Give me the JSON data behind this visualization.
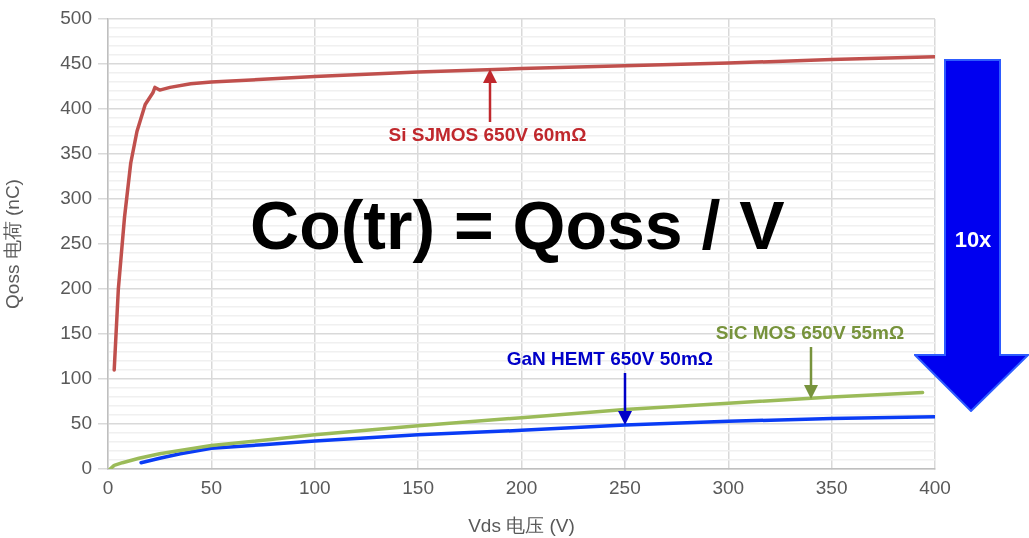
{
  "chart_data": {
    "type": "line",
    "xlabel": "Vds 电压 (V)",
    "ylabel": "Qoss 电荷 (nC)",
    "xlim": [
      0,
      400
    ],
    "xticks": [
      0,
      50,
      100,
      150,
      200,
      250,
      300,
      350,
      400
    ],
    "ylim": [
      0,
      500
    ],
    "yticks": [
      0,
      {
        "value": 10,
        "label": null
      },
      {
        "value": 20,
        "label": null
      },
      {
        "value": 30,
        "label": null
      },
      {
        "value": 40,
        "label": null
      },
      50,
      {
        "value": 60,
        "label": null
      },
      {
        "value": 70,
        "label": null
      },
      {
        "value": 80,
        "label": null
      },
      {
        "value": 90,
        "label": null
      },
      100,
      {
        "value": 110,
        "label": null
      },
      {
        "value": 120,
        "label": null
      },
      {
        "value": 130,
        "label": null
      },
      {
        "value": 140,
        "label": null
      },
      150,
      {
        "value": 160,
        "label": null
      },
      {
        "value": 170,
        "label": null
      },
      {
        "value": 180,
        "label": null
      },
      {
        "value": 190,
        "label": null
      },
      200,
      {
        "value": 210,
        "label": null
      },
      {
        "value": 220,
        "label": null
      },
      {
        "value": 230,
        "label": null
      },
      {
        "value": 240,
        "label": null
      },
      250,
      {
        "value": 260,
        "label": null
      },
      {
        "value": 270,
        "label": null
      },
      {
        "value": 280,
        "label": null
      },
      {
        "value": 290,
        "label": null
      },
      300,
      {
        "value": 310,
        "label": null
      },
      {
        "value": 320,
        "label": null
      },
      {
        "value": 330,
        "label": null
      },
      {
        "value": 340,
        "label": null
      },
      350,
      {
        "value": 360,
        "label": null
      },
      {
        "value": 370,
        "label": null
      },
      {
        "value": 380,
        "label": null
      },
      {
        "value": 390,
        "label": null
      },
      400,
      {
        "value": 410,
        "label": null
      },
      {
        "value": 420,
        "label": null
      },
      {
        "value": 430,
        "label": null
      },
      {
        "value": 440,
        "label": null
      },
      450,
      {
        "value": 460,
        "label": null
      },
      {
        "value": 470,
        "label": null
      },
      {
        "value": 480,
        "label": null
      },
      {
        "value": 490,
        "label": null
      },
      500
    ],
    "grid": true,
    "legend": false,
    "marker": "none",
    "line_style": "solid",
    "series": [
      {
        "color": "#c0504d",
        "x": [
          3,
          5,
          8,
          11,
          14,
          18,
          21.7,
          22.7,
          25,
          30,
          40,
          50,
          75,
          100,
          150,
          200,
          250,
          300,
          350,
          400
        ],
        "values": [
          110,
          200,
          280,
          340,
          375,
          405,
          418,
          424,
          421,
          424,
          428,
          430,
          433,
          436,
          441,
          445,
          448,
          451,
          455,
          458
        ]
      },
      {
        "color": "#9bbb59",
        "x": [
          1,
          3,
          7,
          15,
          25,
          50,
          100,
          150,
          200,
          250,
          300,
          350,
          394
        ],
        "values": [
          0,
          4,
          7,
          12,
          17,
          26,
          38,
          48,
          57,
          66,
          73,
          80,
          85
        ]
      },
      {
        "color": "#0a3cf5",
        "x": [
          16,
          25,
          35,
          50,
          75,
          100,
          150,
          200,
          250,
          300,
          350,
          400
        ],
        "values": [
          7,
          12,
          17,
          23,
          27,
          31,
          38,
          43,
          49,
          53,
          56,
          58
        ]
      }
    ],
    "annotations": [
      "Co(tr) = Qoss / V",
      "10x",
      {
        "text": "Si SJMOS 650V 60mΩ",
        "x": 185,
        "y": 445
      },
      {
        "text": "SiC MOS 650V 55mΩ",
        "x": 340,
        "y": 78
      },
      {
        "text": "GaN HEMT 650V 50mΩ",
        "x": 250,
        "y": 49
      }
    ]
  }
}
